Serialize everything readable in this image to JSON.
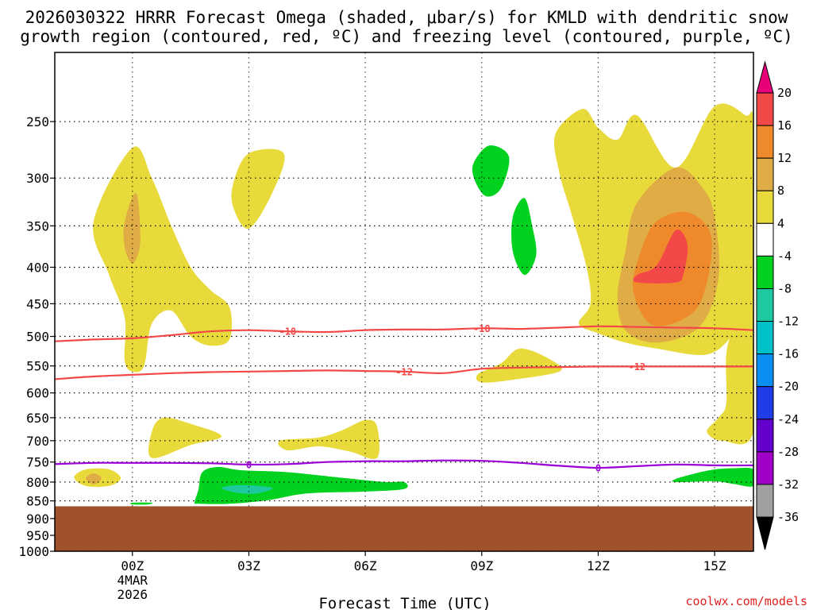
{
  "chart_data": {
    "type": "time-height cross section",
    "title_line1": "2026030322 HRRR Forecast Omega (shaded, μbar/s) for KMLD with dendritic snow",
    "title_line2": "growth region (contoured, red, ºC) and freezing level (contoured, purple, ºC)",
    "xlabel": "Forecast Time (UTC)",
    "credit": "coolwx.com/models",
    "x_unit": "hours since 04MAR2026 00Z",
    "x_range": [
      -2.0,
      16.0
    ],
    "x_ticks": [
      {
        "hour": 0,
        "label": "00Z",
        "sub1": "4MAR",
        "sub2": "2026"
      },
      {
        "hour": 3,
        "label": "03Z",
        "sub1": "",
        "sub2": ""
      },
      {
        "hour": 6,
        "label": "06Z",
        "sub1": "",
        "sub2": ""
      },
      {
        "hour": 9,
        "label": "09Z",
        "sub1": "",
        "sub2": ""
      },
      {
        "hour": 12,
        "label": "12Z",
        "sub1": "",
        "sub2": ""
      },
      {
        "hour": 15,
        "label": "15Z",
        "sub1": "",
        "sub2": ""
      }
    ],
    "y_unit": "hPa",
    "y_range": [
      1000,
      200
    ],
    "y_ticks": [
      {
        "p": 250,
        "label": "250"
      },
      {
        "p": 300,
        "label": "300"
      },
      {
        "p": 350,
        "label": "350"
      },
      {
        "p": 400,
        "label": "400"
      },
      {
        "p": 450,
        "label": "450"
      },
      {
        "p": 500,
        "label": "500"
      },
      {
        "p": 550,
        "label": "550"
      },
      {
        "p": 600,
        "label": "600"
      },
      {
        "p": 650,
        "label": "650"
      },
      {
        "p": 700,
        "label": "700"
      },
      {
        "p": 750,
        "label": "750"
      },
      {
        "p": 800,
        "label": "800"
      },
      {
        "p": 850,
        "label": "850"
      },
      {
        "p": 900,
        "label": "900"
      },
      {
        "p": 950,
        "label": "950"
      },
      {
        "p": 1000,
        "label": "1000"
      }
    ],
    "surface": {
      "pressure_top": 865,
      "color": "#a0522d"
    },
    "colorbar": {
      "levels": [
        {
          "label": "20",
          "color": "#f5006f"
        },
        {
          "label": "16",
          "color": "#f24848"
        },
        {
          "label": "12",
          "color": "#ee8a2c"
        },
        {
          "label": "8",
          "color": "#e0ac46"
        },
        {
          "label": "4",
          "color": "#e8da3a"
        },
        {
          "label": "-4",
          "color": "#ffffff"
        },
        {
          "label": "-8",
          "color": "#00d21f"
        },
        {
          "label": "-12",
          "color": "#1ec9a0"
        },
        {
          "label": "-16",
          "color": "#00c0c8"
        },
        {
          "label": "-20",
          "color": "#0a8ff2"
        },
        {
          "label": "-24",
          "color": "#203ce8"
        },
        {
          "label": "-28",
          "color": "#6400cc"
        },
        {
          "label": "-32",
          "color": "#a000c8"
        },
        {
          "label": "-36",
          "color": "#a0a0a0"
        }
      ],
      "top_arrow_color": "#e8007a",
      "bottom_arrow_color": "#000000"
    },
    "contours": [
      {
        "name": "-18",
        "label": "-18",
        "color": "#f24848",
        "points": [
          [
            -2.0,
            508
          ],
          [
            -1.0,
            505
          ],
          [
            0.0,
            503
          ],
          [
            1.0,
            498
          ],
          [
            2.0,
            492
          ],
          [
            3.0,
            490
          ],
          [
            4.0,
            492
          ],
          [
            5.0,
            493
          ],
          [
            6.0,
            490
          ],
          [
            7.0,
            489
          ],
          [
            8.0,
            489
          ],
          [
            9.0,
            487
          ],
          [
            10.0,
            488
          ],
          [
            11.0,
            486
          ],
          [
            12.0,
            484
          ],
          [
            13.0,
            485
          ],
          [
            14.0,
            486
          ],
          [
            15.0,
            487
          ],
          [
            16.0,
            490
          ]
        ],
        "label_hours": [
          4.0,
          9.0
        ]
      },
      {
        "name": "-12",
        "label": "-12",
        "color": "#f24848",
        "points": [
          [
            -2.0,
            574
          ],
          [
            -1.0,
            569
          ],
          [
            0.0,
            566
          ],
          [
            1.0,
            563
          ],
          [
            2.0,
            561
          ],
          [
            3.0,
            560
          ],
          [
            4.0,
            559
          ],
          [
            5.0,
            558
          ],
          [
            6.0,
            559
          ],
          [
            7.0,
            560
          ],
          [
            8.0,
            563
          ],
          [
            9.0,
            555
          ],
          [
            10.0,
            553
          ],
          [
            11.0,
            552
          ],
          [
            12.0,
            551
          ],
          [
            13.0,
            551
          ],
          [
            14.0,
            551
          ],
          [
            15.0,
            551
          ],
          [
            16.0,
            551
          ]
        ],
        "label_hours": [
          7.0,
          13.0
        ]
      },
      {
        "name": "freezing",
        "label": "0",
        "color": "#9b00d6",
        "points": [
          [
            -2.0,
            755
          ],
          [
            -1.0,
            752
          ],
          [
            0.0,
            752
          ],
          [
            1.0,
            752
          ],
          [
            2.0,
            753
          ],
          [
            3.0,
            756
          ],
          [
            4.0,
            755
          ],
          [
            5.0,
            750
          ],
          [
            6.0,
            748
          ],
          [
            7.0,
            748
          ],
          [
            8.0,
            746
          ],
          [
            9.0,
            747
          ],
          [
            10.0,
            752
          ],
          [
            11.0,
            759
          ],
          [
            12.0,
            764
          ],
          [
            13.0,
            760
          ],
          [
            14.0,
            756
          ],
          [
            15.0,
            758
          ],
          [
            16.0,
            758
          ]
        ],
        "label_hours": [
          3.0,
          12.0
        ]
      }
    ],
    "omega_regions": [
      {
        "name": "pos-upper-left",
        "color": "#e8da3a",
        "points": [
          [
            -1.0,
            345
          ],
          [
            0.0,
            272
          ],
          [
            0.5,
            300
          ],
          [
            1.0,
            350
          ],
          [
            1.5,
            400
          ],
          [
            2.0,
            430
          ],
          [
            2.5,
            455
          ],
          [
            2.5,
            505
          ],
          [
            2.0,
            515
          ],
          [
            1.5,
            500
          ],
          [
            1.0,
            460
          ],
          [
            0.5,
            480
          ],
          [
            0.3,
            550
          ],
          [
            0.0,
            560
          ],
          [
            -0.2,
            540
          ],
          [
            -0.2,
            470
          ],
          [
            -0.6,
            410
          ]
        ]
      },
      {
        "name": "pos-upper-left-core",
        "color": "#e0ac46",
        "points": [
          [
            -0.2,
            345
          ],
          [
            0.1,
            315
          ],
          [
            0.2,
            370
          ],
          [
            0.0,
            395
          ],
          [
            -0.2,
            375
          ]
        ]
      },
      {
        "name": "pos-03z-top",
        "color": "#e8da3a",
        "points": [
          [
            2.6,
            305
          ],
          [
            3.0,
            277
          ],
          [
            3.9,
            277
          ],
          [
            3.6,
            315
          ],
          [
            3.0,
            353
          ],
          [
            2.6,
            330
          ]
        ]
      },
      {
        "name": "pos-midlevel-left",
        "color": "#e8da3a",
        "points": [
          [
            0.5,
            680
          ],
          [
            0.8,
            650
          ],
          [
            1.5,
            663
          ],
          [
            2.3,
            690
          ],
          [
            1.5,
            710
          ],
          [
            0.5,
            740
          ]
        ]
      },
      {
        "name": "pos-midlevel-center",
        "color": "#e8da3a",
        "points": [
          [
            3.8,
            700
          ],
          [
            4.8,
            693
          ],
          [
            5.4,
            677
          ],
          [
            6.0,
            655
          ],
          [
            6.3,
            668
          ],
          [
            6.3,
            740
          ],
          [
            5.6,
            725
          ],
          [
            4.8,
            713
          ],
          [
            4.0,
            722
          ]
        ]
      },
      {
        "name": "pos-lowlevel-left",
        "color": "#e8da3a",
        "points": [
          [
            -1.5,
            788
          ],
          [
            -1.2,
            768
          ],
          [
            -0.6,
            768
          ],
          [
            -0.3,
            790
          ],
          [
            -0.6,
            810
          ],
          [
            -1.2,
            810
          ]
        ]
      },
      {
        "name": "pos-lowlevel-left-core",
        "color": "#e0ac46",
        "points": [
          [
            -1.2,
            790
          ],
          [
            -1.0,
            778
          ],
          [
            -0.8,
            790
          ],
          [
            -1.0,
            806
          ]
        ]
      },
      {
        "name": "pos-mid-center-right",
        "color": "#e8da3a",
        "points": [
          [
            8.9,
            565
          ],
          [
            9.5,
            545
          ],
          [
            10.0,
            520
          ],
          [
            10.8,
            540
          ],
          [
            11.0,
            560
          ],
          [
            9.8,
            575
          ],
          [
            9.0,
            580
          ]
        ]
      },
      {
        "name": "pos-upper-right",
        "color": "#e8da3a",
        "points": [
          [
            10.9,
            260
          ],
          [
            11.6,
            240
          ],
          [
            12.0,
            255
          ],
          [
            12.5,
            265
          ],
          [
            13.0,
            245
          ],
          [
            14.0,
            290
          ],
          [
            15.0,
            238
          ],
          [
            15.8,
            245
          ],
          [
            16.0,
            255
          ],
          [
            16.0,
            445
          ],
          [
            15.5,
            495
          ],
          [
            14.8,
            530
          ],
          [
            13.5,
            520
          ],
          [
            12.7,
            510
          ],
          [
            12.0,
            495
          ],
          [
            11.5,
            480
          ],
          [
            11.8,
            450
          ],
          [
            11.7,
            400
          ],
          [
            11.3,
            335
          ],
          [
            11.0,
            295
          ]
        ]
      },
      {
        "name": "pos-upper-right-8",
        "color": "#e0ac46",
        "points": [
          [
            12.5,
            440
          ],
          [
            12.7,
            380
          ],
          [
            13.0,
            325
          ],
          [
            14.0,
            290
          ],
          [
            14.7,
            310
          ],
          [
            15.0,
            340
          ],
          [
            15.1,
            415
          ],
          [
            14.6,
            485
          ],
          [
            13.5,
            510
          ],
          [
            12.7,
            490
          ]
        ]
      },
      {
        "name": "pos-upper-right-12",
        "color": "#ee8a2c",
        "points": [
          [
            12.9,
            430
          ],
          [
            13.1,
            380
          ],
          [
            13.5,
            345
          ],
          [
            14.3,
            335
          ],
          [
            14.9,
            360
          ],
          [
            14.8,
            420
          ],
          [
            14.4,
            465
          ],
          [
            13.4,
            482
          ]
        ]
      },
      {
        "name": "pos-upper-right-16",
        "color": "#f24848",
        "points": [
          [
            13.0,
            410
          ],
          [
            13.5,
            398
          ],
          [
            14.0,
            355
          ],
          [
            14.3,
            372
          ],
          [
            14.2,
            408
          ],
          [
            14.0,
            420
          ],
          [
            13.0,
            420
          ]
        ]
      },
      {
        "name": "pos-right-edge",
        "color": "#e8da3a",
        "points": [
          [
            16.0,
            460
          ],
          [
            15.5,
            490
          ],
          [
            15.3,
            530
          ],
          [
            15.3,
            620
          ],
          [
            15.1,
            650
          ],
          [
            14.8,
            680
          ],
          [
            15.2,
            700
          ],
          [
            16.0,
            680
          ]
        ]
      },
      {
        "name": "neg-low-03z",
        "color": "#00d21f",
        "points": [
          [
            1.6,
            855
          ],
          [
            1.7,
            820
          ],
          [
            1.8,
            775
          ],
          [
            2.2,
            762
          ],
          [
            2.8,
            770
          ],
          [
            4.0,
            775
          ],
          [
            5.5,
            790
          ],
          [
            6.5,
            800
          ],
          [
            7.0,
            800
          ],
          [
            7.0,
            818
          ],
          [
            6.0,
            825
          ],
          [
            4.5,
            830
          ],
          [
            3.5,
            848
          ],
          [
            2.5,
            858
          ],
          [
            1.7,
            858
          ]
        ]
      },
      {
        "name": "neg-low-03z-core",
        "color": "#1ec9a0",
        "points": [
          [
            2.3,
            815
          ],
          [
            2.8,
            808
          ],
          [
            3.6,
            815
          ],
          [
            3.2,
            830
          ],
          [
            2.7,
            828
          ]
        ]
      },
      {
        "name": "neg-low-left-sliver",
        "color": "#00d21f",
        "points": [
          [
            0.0,
            855
          ],
          [
            0.5,
            855
          ],
          [
            0.4,
            860
          ],
          [
            0.0,
            860
          ]
        ]
      },
      {
        "name": "neg-upper-300",
        "color": "#00d21f",
        "points": [
          [
            8.8,
            285
          ],
          [
            9.2,
            270
          ],
          [
            9.7,
            280
          ],
          [
            9.5,
            310
          ],
          [
            9.1,
            318
          ],
          [
            8.8,
            300
          ]
        ]
      },
      {
        "name": "neg-upper-370",
        "color": "#00d21f",
        "points": [
          [
            9.8,
            340
          ],
          [
            10.1,
            320
          ],
          [
            10.3,
            350
          ],
          [
            10.4,
            385
          ],
          [
            10.1,
            410
          ],
          [
            9.8,
            380
          ]
        ]
      },
      {
        "name": "neg-low-right",
        "color": "#00d21f",
        "points": [
          [
            14.0,
            792
          ],
          [
            14.5,
            778
          ],
          [
            15.0,
            768
          ],
          [
            15.5,
            765
          ],
          [
            16.0,
            768
          ],
          [
            16.0,
            810
          ],
          [
            15.5,
            805
          ],
          [
            15.0,
            798
          ],
          [
            14.0,
            800
          ]
        ]
      }
    ]
  }
}
